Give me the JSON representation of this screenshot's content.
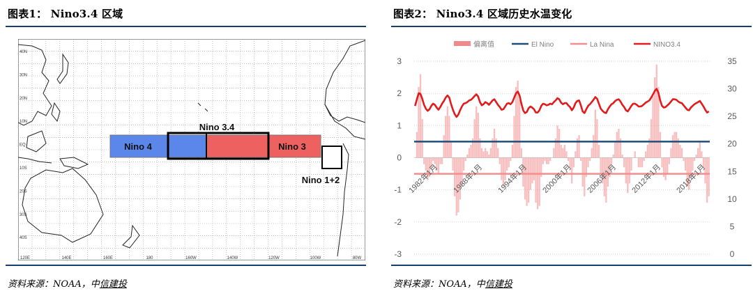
{
  "left": {
    "title": "图表1： Nino3.4 区域",
    "source": {
      "prefix": "资料来源：NOAA，中",
      "underlined": "信建投"
    },
    "map": {
      "lat_labels": [
        "40N",
        "30N",
        "20N",
        "10N",
        "EQ",
        "10S",
        "20S",
        "30S",
        "40S"
      ],
      "lon_labels": [
        "120E",
        "140E",
        "160E",
        "180",
        "160W",
        "140W",
        "120W",
        "100W",
        "80W"
      ],
      "regions": [
        {
          "label": "Nino 4",
          "color": "#5b86ea"
        },
        {
          "label": "Nino 3.4",
          "color": "#ee6161"
        },
        {
          "label": "Nino 3",
          "color": "#ee6161"
        },
        {
          "label": "Nino 1+2",
          "color": "#ffffff"
        }
      ]
    }
  },
  "right": {
    "title": "图表2： Nino3.4 区域历史水温变化",
    "source": {
      "prefix": "资料来源：NOAA，中",
      "underlined": "信建投"
    }
  },
  "chart_data": {
    "type": "line",
    "legend": [
      "偏离值",
      "El Nino",
      "La Nina",
      "NINO3.4"
    ],
    "legend_position": "top",
    "colors": {
      "偏离值": "#f08a8a",
      "El Nino": "#1f4e79",
      "La Nina": "#f28e8e",
      "NINO3.4": "#e31a1c"
    },
    "x_tick_labels": [
      "1982年1月",
      "1988年1月",
      "1994年1月",
      "2000年1月",
      "2006年1月",
      "2012年1月",
      "2018年1月"
    ],
    "y_left": {
      "ticks": [
        -3,
        -2,
        -1,
        0,
        1,
        2,
        3
      ],
      "ylim": [
        -3,
        3
      ]
    },
    "y_right": {
      "ticks": [
        0,
        5,
        10,
        15,
        20,
        25,
        30,
        35
      ],
      "ylim": [
        0,
        35
      ]
    },
    "el_nino_threshold": 0.5,
    "la_nina_threshold": -0.5,
    "series": [
      {
        "name": "偏离值",
        "type": "bar",
        "axis": "left",
        "x_start": 1982,
        "step": 0.25,
        "values": [
          0.0,
          0.8,
          2.2,
          2.6,
          1.2,
          -0.2,
          -0.4,
          -0.7,
          -0.6,
          -0.3,
          -0.1,
          -0.2,
          -0.4,
          -0.5,
          -0.2,
          -0.2,
          0.7,
          1.3,
          1.6,
          1.3,
          0.5,
          -0.4,
          -1.2,
          -1.8,
          -1.7,
          -1.3,
          -0.9,
          -0.4,
          -0.1,
          0.1,
          0.3,
          0.4,
          0.6,
          1.2,
          1.6,
          1.4,
          0.6,
          0.3,
          0.2,
          0.3,
          0.2,
          0.1,
          0.3,
          0.6,
          0.9,
          0.6,
          0.3,
          -0.2,
          -0.7,
          -0.9,
          -0.7,
          -0.4,
          -0.3,
          -0.1,
          0.4,
          1.3,
          2.2,
          2.4,
          1.8,
          0.3,
          -0.9,
          -1.3,
          -1.5,
          -1.4,
          -1.0,
          -0.8,
          -0.7,
          -1.4,
          -1.6,
          -1.5,
          -0.6,
          -0.2,
          -0.1,
          -0.2,
          -0.2,
          -0.1,
          0.0,
          0.3,
          0.6,
          1.0,
          0.9,
          0.4,
          0.3,
          0.4,
          0.2,
          -0.1,
          -0.3,
          -0.8,
          -0.3,
          0.2,
          0.6,
          0.7,
          -0.1,
          -0.9,
          -1.2,
          -0.6,
          -0.3,
          -0.1,
          0.3,
          0.7,
          1.5,
          1.2,
          0.4,
          -0.5,
          -0.8,
          -1.2,
          -1.4,
          -0.9,
          -0.6,
          -0.2,
          0.1,
          0.5,
          0.8,
          0.9,
          0.6,
          0.1,
          -0.3,
          -0.8,
          -1.1,
          -0.8,
          -0.4,
          0.0,
          0.2,
          0.0,
          -0.3,
          -0.3,
          -0.3,
          -0.1,
          0.2,
          0.4,
          0.6,
          1.2,
          1.9,
          2.5,
          2.9,
          2.2,
          0.8,
          -0.3,
          -0.6,
          -0.7,
          -0.5,
          -0.2,
          0.3,
          0.7,
          0.8,
          0.8,
          0.6,
          0.4,
          0.3,
          -0.1,
          -0.4,
          -0.9,
          -1.0,
          -0.6,
          -0.4,
          -0.1,
          0.1,
          0.3,
          0.5,
          0.2,
          -0.3,
          -0.8,
          -1.4,
          -1.2
        ]
      },
      {
        "name": "El Nino",
        "type": "line",
        "axis": "left",
        "value": 0.5
      },
      {
        "name": "La Nina",
        "type": "line",
        "axis": "left",
        "value": -0.5
      },
      {
        "name": "NINO3.4",
        "type": "line",
        "axis": "right",
        "x_start": 1982,
        "step": 0.25,
        "values": [
          26.9,
          28.1,
          29.2,
          29.1,
          28.2,
          27.1,
          26.4,
          26.0,
          26.3,
          26.9,
          27.3,
          27.1,
          26.6,
          26.2,
          26.7,
          27.3,
          27.8,
          28.4,
          28.8,
          28.4,
          27.2,
          26.2,
          25.4,
          24.9,
          25.3,
          26.1,
          26.8,
          27.3,
          27.4,
          27.6,
          27.9,
          28.0,
          28.3,
          28.7,
          29.0,
          28.6,
          27.6,
          27.0,
          27.2,
          27.6,
          27.4,
          27.1,
          27.5,
          27.9,
          28.1,
          27.6,
          27.1,
          26.7,
          26.2,
          26.3,
          26.8,
          27.3,
          27.4,
          27.2,
          27.6,
          28.4,
          29.2,
          29.5,
          28.8,
          27.3,
          26.1,
          25.6,
          25.8,
          26.5,
          26.8,
          26.6,
          26.3,
          25.7,
          25.7,
          26.1,
          26.9,
          27.3,
          27.2,
          27.0,
          27.1,
          27.3,
          27.2,
          27.6,
          27.9,
          28.3,
          28.1,
          27.5,
          27.2,
          27.4,
          27.4,
          27.0,
          26.7,
          26.1,
          26.6,
          27.4,
          27.8,
          27.9,
          27.0,
          25.9,
          25.6,
          26.3,
          26.9,
          27.2,
          27.6,
          28.0,
          28.5,
          28.2,
          27.3,
          26.4,
          26.0,
          25.7,
          25.6,
          26.3,
          26.8,
          27.2,
          27.4,
          27.8,
          28.0,
          28.1,
          27.7,
          27.1,
          26.7,
          26.1,
          25.9,
          26.4,
          26.9,
          27.3,
          27.3,
          27.1,
          26.8,
          26.8,
          26.9,
          27.2,
          27.5,
          27.7,
          27.9,
          28.4,
          29.0,
          29.6,
          30.0,
          29.3,
          27.9,
          26.9,
          26.6,
          26.7,
          27.0,
          27.3,
          27.7,
          28.1,
          28.1,
          28.0,
          27.7,
          27.5,
          27.4,
          27.0,
          26.6,
          26.2,
          26.1,
          26.6,
          26.9,
          27.2,
          27.4,
          27.6,
          27.8,
          27.3,
          26.8,
          26.2,
          25.7,
          25.9
        ]
      }
    ]
  }
}
